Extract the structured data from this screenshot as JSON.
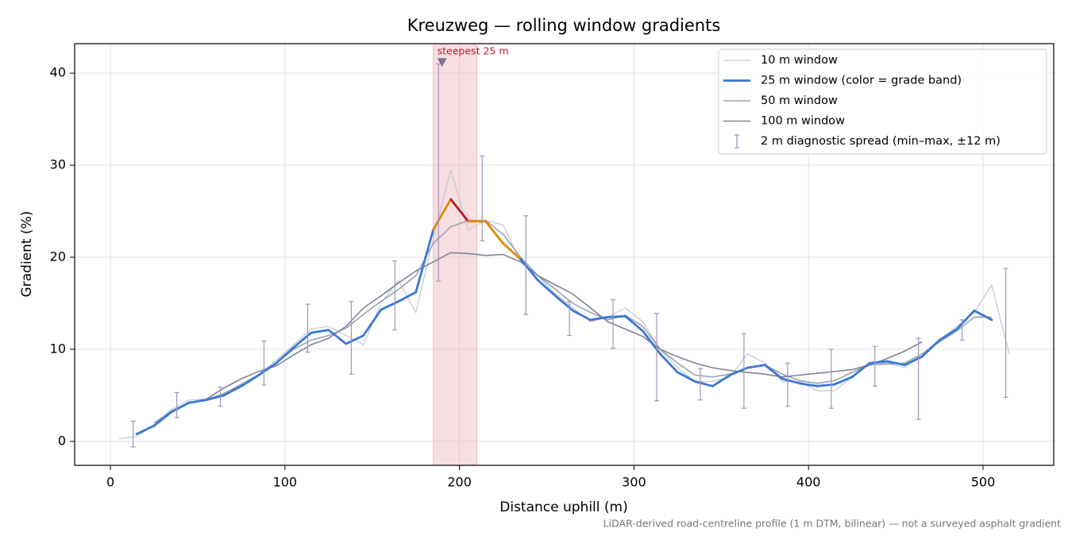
{
  "chart_data": {
    "type": "line",
    "title": "Kreuzweg — rolling window gradients",
    "xlabel": "Distance uphill (m)",
    "ylabel": "Gradient (%)",
    "note": "LiDAR-derived road-centreline profile (1 m DTM, bilinear) — not a surveyed asphalt gradient",
    "xlim": [
      -20.5,
      540.5
    ],
    "ylim": [
      -2.6,
      43.2
    ],
    "xticks": [
      0,
      100,
      200,
      300,
      400,
      500
    ],
    "yticks": [
      0,
      10,
      20,
      30,
      40
    ],
    "grid": true,
    "legend": "upper right",
    "x": [
      5,
      15,
      25,
      35,
      45,
      55,
      65,
      75,
      85,
      95,
      105,
      115,
      125,
      135,
      145,
      155,
      165,
      175,
      185,
      195,
      205,
      215,
      225,
      235,
      245,
      255,
      265,
      275,
      285,
      295,
      305,
      315,
      325,
      335,
      345,
      355,
      365,
      375,
      385,
      395,
      405,
      415,
      425,
      435,
      445,
      455,
      465,
      475,
      485,
      495,
      505,
      515
    ],
    "series": [
      {
        "name": "10 m window",
        "color": "#c3c7d3",
        "width": 1.2,
        "values": [
          0.3,
          0.5,
          1.8,
          3.5,
          4.5,
          4.6,
          5.2,
          6.2,
          7.3,
          8.8,
          10.5,
          12.2,
          12.5,
          11.5,
          10.5,
          15,
          17.5,
          14,
          22,
          29.5,
          23,
          24,
          23.5,
          19.5,
          18,
          16,
          14.5,
          13,
          13.5,
          14.5,
          13,
          10,
          8,
          6.5,
          6.5,
          7,
          9.5,
          8.5,
          6.5,
          6.5,
          5.5,
          5.5,
          7,
          8.5,
          8.5,
          8,
          9.5,
          11,
          12.5,
          14,
          17,
          9.5
        ]
      },
      {
        "name": "25 m window (color = grade band)",
        "color": "#3a78d4",
        "width": 2.8,
        "grade_bands": [
          {
            "from": 0,
            "color": "#3a78d4"
          },
          {
            "from": 20,
            "color": "#e08a00"
          },
          {
            "from": 25,
            "color": "#c0182a"
          }
        ],
        "values": [
          null,
          0.8,
          1.7,
          3.2,
          4.2,
          4.5,
          5.0,
          6.0,
          7.2,
          8.5,
          10.2,
          11.8,
          12.1,
          10.6,
          11.5,
          14.3,
          15.2,
          16.2,
          23,
          26.3,
          23.9,
          23.9,
          21.5,
          19.8,
          17.5,
          15.8,
          14.2,
          13.2,
          13.5,
          13.6,
          12,
          9.5,
          7.5,
          6.5,
          6.0,
          7.2,
          8.0,
          8.3,
          6.8,
          6.3,
          6.0,
          6.2,
          7.0,
          8.5,
          8.7,
          8.3,
          9.2,
          11,
          12.2,
          14.2,
          13.2,
          null
        ]
      },
      {
        "name": "50 m window",
        "color": "#9aa3b3",
        "width": 1.6,
        "values": [
          null,
          null,
          2.0,
          3.3,
          4.2,
          4.5,
          5.2,
          6.2,
          7.2,
          8.5,
          10,
          11,
          11.5,
          12.3,
          13.8,
          15.2,
          16.5,
          18,
          21.5,
          23.3,
          24,
          24,
          22.5,
          20,
          18,
          16.5,
          15,
          14,
          13.2,
          13.7,
          12.5,
          10,
          8.5,
          7.2,
          7,
          7.3,
          8,
          8.3,
          7.3,
          6.6,
          6.3,
          6.6,
          7.5,
          8.3,
          8.4,
          8.5,
          9.5,
          10.8,
          12,
          13.5,
          13.5,
          null
        ]
      },
      {
        "name": "100 m window",
        "color": "#7f8595",
        "width": 1.6,
        "values": [
          null,
          null,
          null,
          null,
          null,
          4.6,
          5.8,
          6.8,
          7.6,
          8.2,
          9.4,
          10.5,
          11.2,
          12.5,
          14.5,
          15.8,
          17.2,
          18.5,
          19.5,
          20.5,
          20.4,
          20.2,
          20.3,
          19.5,
          18,
          17,
          16,
          14.5,
          13,
          12.2,
          11.4,
          10,
          9.2,
          8.5,
          8,
          7.7,
          7.5,
          7.3,
          7.0,
          7.2,
          7.4,
          7.6,
          7.8,
          8.3,
          9,
          9.8,
          10.8,
          null,
          null,
          null,
          null,
          null
        ]
      }
    ],
    "spread": {
      "name": "2 m diagnostic spread (min–max, ±12 m)",
      "color": "#9c97bb",
      "x": [
        13,
        38,
        63,
        88,
        113,
        138,
        163,
        188,
        213,
        238,
        263,
        288,
        313,
        338,
        363,
        388,
        413,
        438,
        463,
        488,
        513
      ],
      "min": [
        -0.6,
        2.6,
        3.8,
        6.1,
        9.7,
        7.3,
        12.1,
        17.4,
        21.8,
        13.8,
        11.5,
        10.1,
        4.4,
        4.5,
        3.6,
        3.8,
        3.6,
        6,
        2.4,
        11,
        4.8
      ],
      "max": [
        2.2,
        5.3,
        5.9,
        10.9,
        14.9,
        15.2,
        19.6,
        41,
        31,
        24.5,
        15.2,
        15.4,
        13.9,
        7.9,
        11.7,
        8.5,
        10,
        10.3,
        11.2,
        13.2,
        18.8
      ]
    },
    "highlight": {
      "from": 185,
      "to": 210,
      "color": "#e7a0a8"
    },
    "annotation": {
      "text": "steepest 25 m",
      "x": 190,
      "y": 41.2,
      "color": "#c0182a"
    }
  }
}
